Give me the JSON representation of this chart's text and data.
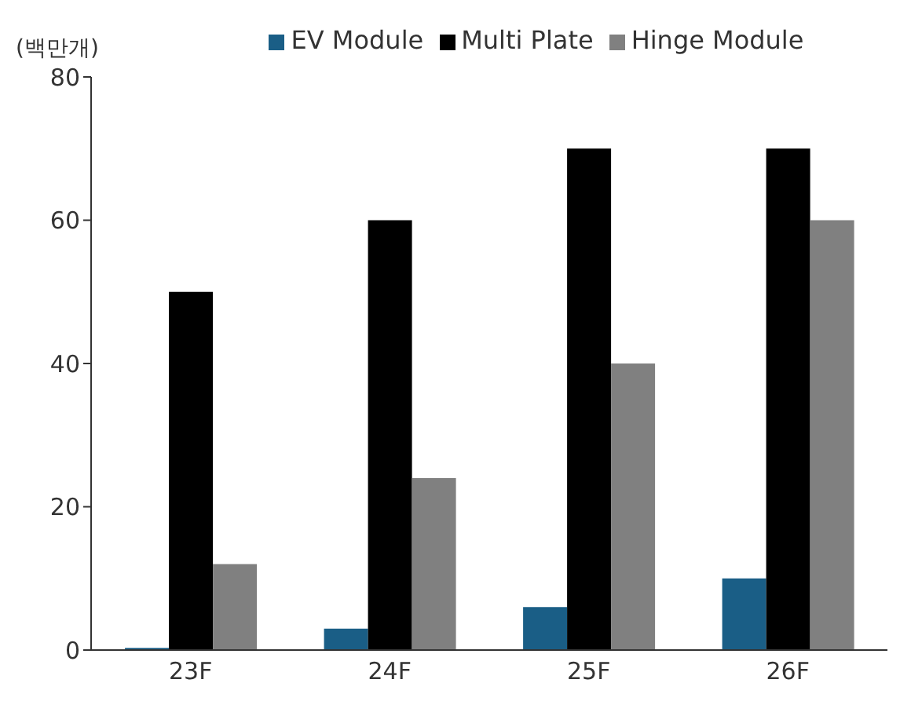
{
  "chart_data": {
    "type": "bar",
    "ylabel": "(백만개)",
    "categories": [
      "23F",
      "24F",
      "25F",
      "26F"
    ],
    "series": [
      {
        "name": "EV Module",
        "color": "#1a5e86",
        "values": [
          0.3,
          3,
          6,
          10
        ]
      },
      {
        "name": "Multi Plate",
        "color": "#000000",
        "values": [
          50,
          60,
          70,
          70
        ]
      },
      {
        "name": "Hinge Module",
        "color": "#808080",
        "values": [
          12,
          24,
          40,
          60
        ]
      }
    ],
    "ylim": [
      0,
      80
    ],
    "yticks": [
      0,
      20,
      40,
      60,
      80
    ],
    "grid": false,
    "legend": "top"
  }
}
